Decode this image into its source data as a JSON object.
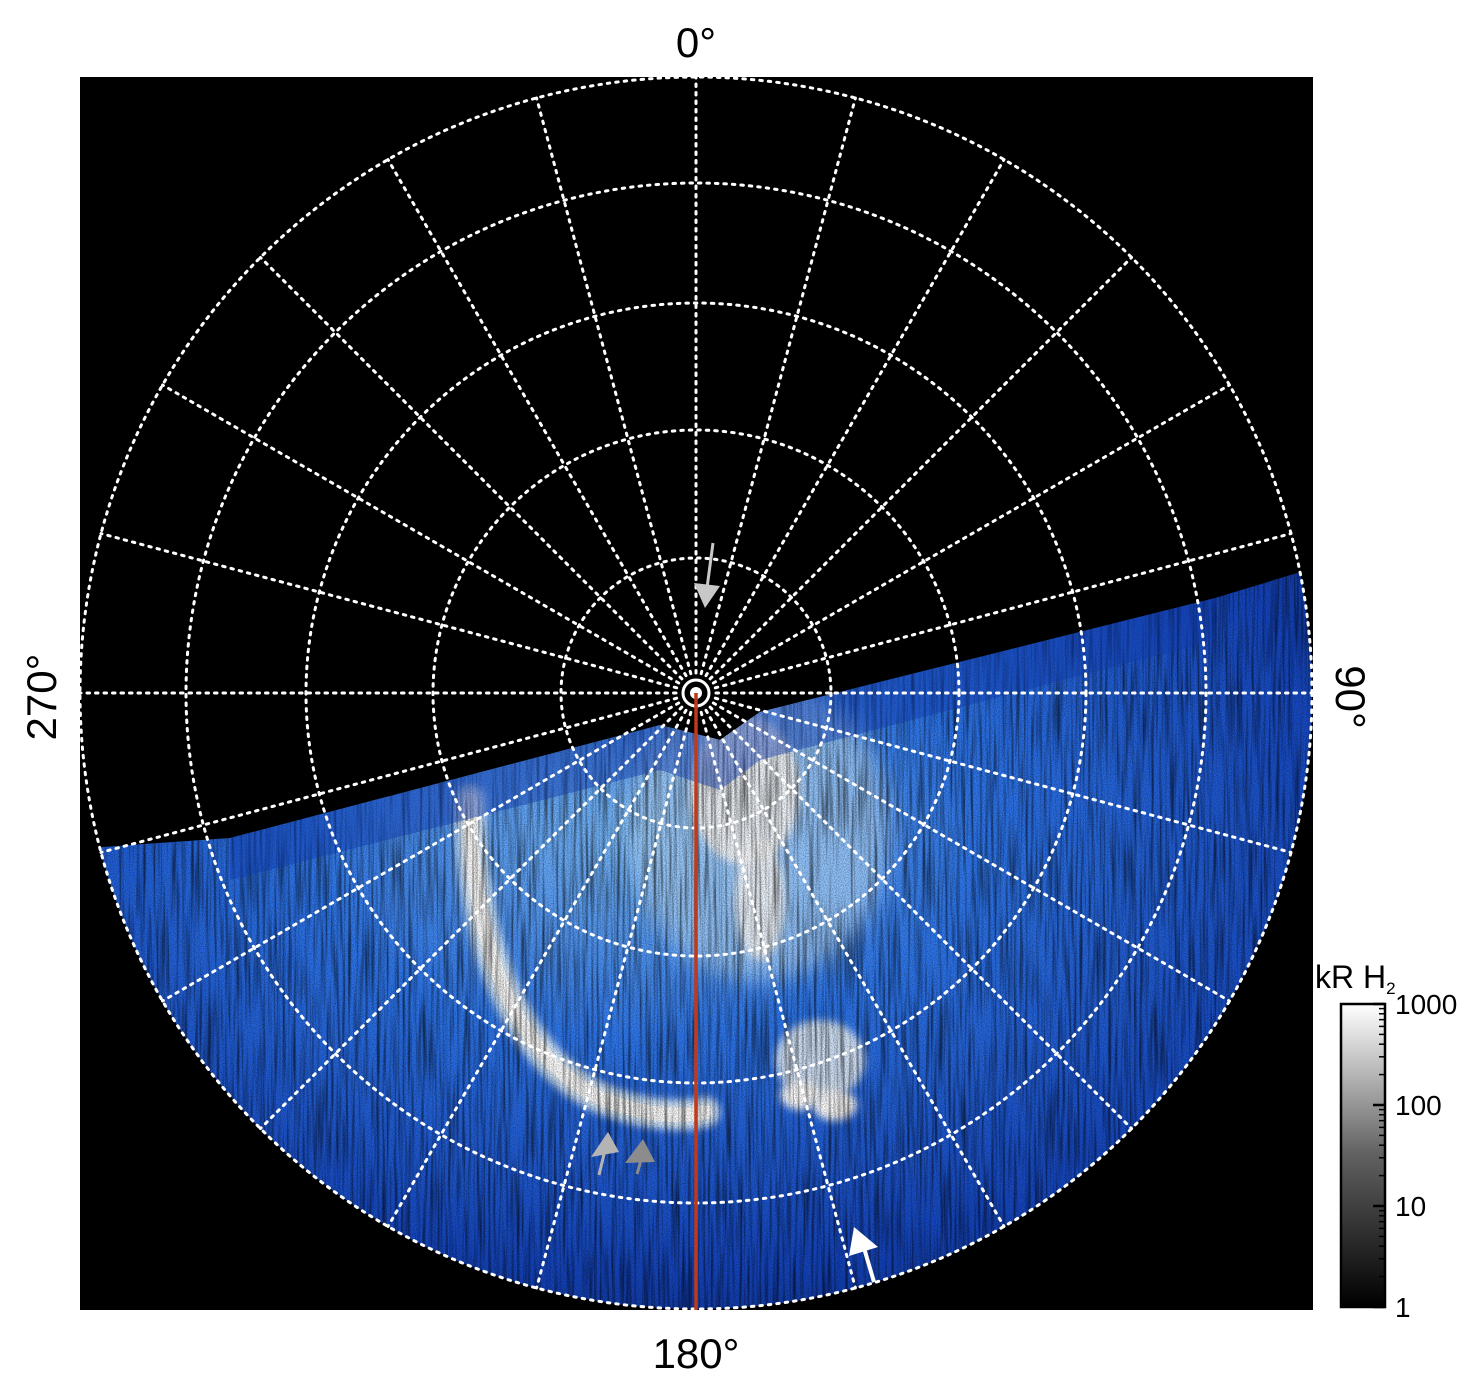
{
  "angle_labels": {
    "top": "0°",
    "bottom": "180°",
    "left": "270°",
    "right": "90°"
  },
  "colorbar": {
    "title_main": "kR H",
    "title_sub": "2",
    "ticks": [
      {
        "label": "1000",
        "value": 1000
      },
      {
        "label": "100",
        "value": 100
      },
      {
        "label": "10",
        "value": 10
      },
      {
        "label": "1",
        "value": 1
      }
    ],
    "range": [
      1,
      1000
    ],
    "scale": "log",
    "colormap": "black-to-white grayscale"
  },
  "image": {
    "background_color": "#000000",
    "grid_style": "white dotted",
    "parallel_rings": 5,
    "meridian_step_deg": 15,
    "aurora_colors": [
      "#0b2a8a",
      "#1f5fe0",
      "#5aa8ff",
      "#ffffff"
    ],
    "meridian_line_color": "#c0391b"
  },
  "arrows": [
    {
      "name": "upper-gray-arrow",
      "color": "#c8c8c8"
    },
    {
      "name": "lower-left-gray-arrow-1",
      "color": "#b4b4b4"
    },
    {
      "name": "lower-left-gray-arrow-2",
      "color": "#8c8c8c"
    },
    {
      "name": "lower-right-white-arrow",
      "color": "#ffffff"
    }
  ]
}
